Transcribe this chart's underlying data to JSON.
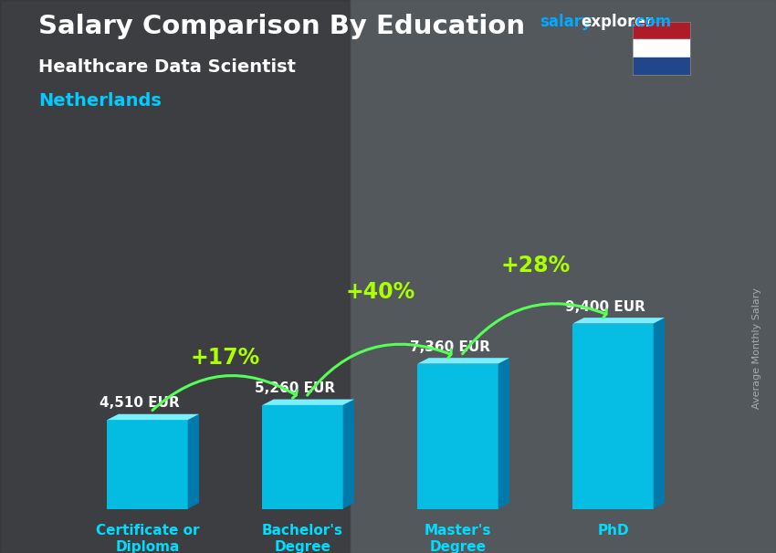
{
  "title": "Salary Comparison By Education",
  "subtitle1": "Healthcare Data Scientist",
  "subtitle2": "Netherlands",
  "ylabel": "Average Monthly Salary",
  "categories": [
    "Certificate or\nDiploma",
    "Bachelor's\nDegree",
    "Master's\nDegree",
    "PhD"
  ],
  "values": [
    4510,
    5260,
    7360,
    9400
  ],
  "labels": [
    "4,510 EUR",
    "5,260 EUR",
    "7,360 EUR",
    "9,400 EUR"
  ],
  "pct_labels": [
    "+17%",
    "+40%",
    "+28%"
  ],
  "color_front": "#00c8f0",
  "color_top": "#7af0ff",
  "color_side": "#007aaa",
  "bg_dark": "#3a3a3a",
  "bg_mid": "#5a5a5a",
  "title_color": "#ffffff",
  "subtitle1_color": "#ffffff",
  "subtitle2_color": "#00ccff",
  "label_color": "#ffffff",
  "pct_color": "#aaff00",
  "arrow_color": "#55ff55",
  "cat_color": "#00ddff",
  "ylabel_color": "#aaaaaa",
  "watermark_salary_color": "#00aaff",
  "watermark_explorer_color": "#ffffff",
  "watermark_com_color": "#00aaff",
  "ylim_max": 10500,
  "bar_width": 0.52,
  "figsize": [
    8.5,
    6.06
  ]
}
